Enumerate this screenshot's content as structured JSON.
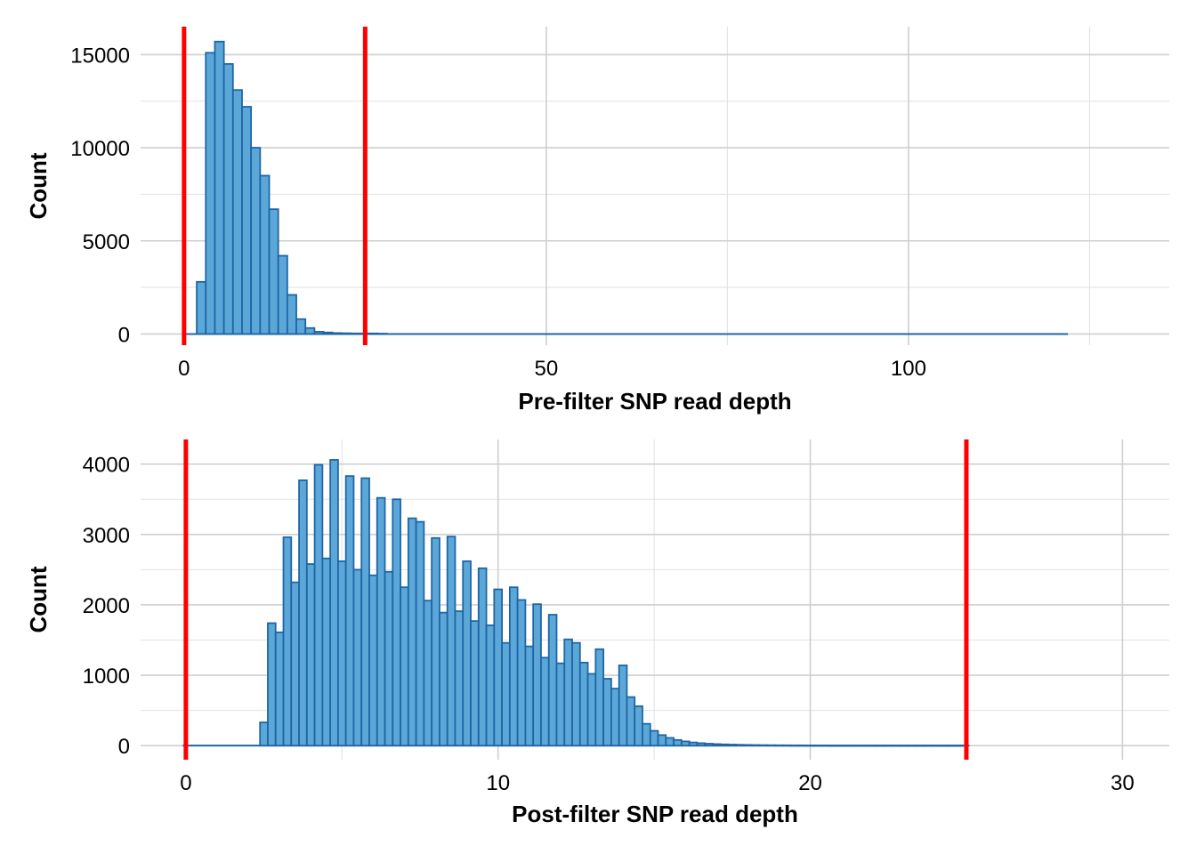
{
  "chart_data": [
    {
      "type": "bar",
      "xlabel": "Pre-filter SNP read depth",
      "ylabel": "Count",
      "xlim": [
        -6,
        136
      ],
      "ylim": [
        -600,
        16500
      ],
      "x_ticks": [
        0,
        50,
        100
      ],
      "y_ticks": [
        0,
        5000,
        10000,
        15000
      ],
      "grid": true,
      "bin_width": 1.25,
      "bins": [
        {
          "x": 2.375,
          "y": 2800
        },
        {
          "x": 3.625,
          "y": 15100
        },
        {
          "x": 4.875,
          "y": 15700
        },
        {
          "x": 6.125,
          "y": 14500
        },
        {
          "x": 7.375,
          "y": 13100
        },
        {
          "x": 8.625,
          "y": 12200
        },
        {
          "x": 9.875,
          "y": 10000
        },
        {
          "x": 11.125,
          "y": 8500
        },
        {
          "x": 12.375,
          "y": 6700
        },
        {
          "x": 13.625,
          "y": 4200
        },
        {
          "x": 14.875,
          "y": 2100
        },
        {
          "x": 16.125,
          "y": 800
        },
        {
          "x": 17.375,
          "y": 320
        },
        {
          "x": 18.625,
          "y": 120
        },
        {
          "x": 19.875,
          "y": 80
        },
        {
          "x": 21.125,
          "y": 50
        },
        {
          "x": 22.375,
          "y": 40
        },
        {
          "x": 23.625,
          "y": 30
        },
        {
          "x": 24.875,
          "y": 30
        },
        {
          "x": 26.125,
          "y": 30
        },
        {
          "x": 27.375,
          "y": 20
        }
      ],
      "baseline_range": [
        0,
        122
      ],
      "threshold_lines": [
        0,
        25
      ],
      "threshold_color": "#ff0000",
      "bar_fill": "#5ba8d8",
      "bar_stroke": "#1f65a6"
    },
    {
      "type": "bar",
      "xlabel": "Post-filter SNP read depth",
      "ylabel": "Count",
      "xlim": [
        -1.45,
        31.5
      ],
      "ylim": [
        -200,
        4350
      ],
      "x_ticks": [
        0,
        10,
        20,
        30
      ],
      "y_ticks": [
        0,
        1000,
        2000,
        3000,
        4000
      ],
      "grid": true,
      "bin_width": 0.25,
      "bins": [
        {
          "x": 2.5,
          "y": 330
        },
        {
          "x": 2.75,
          "y": 1740
        },
        {
          "x": 3.0,
          "y": 1610
        },
        {
          "x": 3.25,
          "y": 2960
        },
        {
          "x": 3.5,
          "y": 2320
        },
        {
          "x": 3.75,
          "y": 3770
        },
        {
          "x": 4.0,
          "y": 2580
        },
        {
          "x": 4.25,
          "y": 3990
        },
        {
          "x": 4.5,
          "y": 2660
        },
        {
          "x": 4.75,
          "y": 4060
        },
        {
          "x": 5.0,
          "y": 2620
        },
        {
          "x": 5.25,
          "y": 3830
        },
        {
          "x": 5.5,
          "y": 2500
        },
        {
          "x": 5.75,
          "y": 3800
        },
        {
          "x": 6.0,
          "y": 2420
        },
        {
          "x": 6.25,
          "y": 3520
        },
        {
          "x": 6.5,
          "y": 2470
        },
        {
          "x": 6.75,
          "y": 3500
        },
        {
          "x": 7.0,
          "y": 2250
        },
        {
          "x": 7.25,
          "y": 3230
        },
        {
          "x": 7.5,
          "y": 3180
        },
        {
          "x": 7.75,
          "y": 2060
        },
        {
          "x": 8.0,
          "y": 2950
        },
        {
          "x": 8.25,
          "y": 1890
        },
        {
          "x": 8.5,
          "y": 2970
        },
        {
          "x": 8.75,
          "y": 1910
        },
        {
          "x": 9.0,
          "y": 2620
        },
        {
          "x": 9.25,
          "y": 1770
        },
        {
          "x": 9.5,
          "y": 2520
        },
        {
          "x": 9.75,
          "y": 1710
        },
        {
          "x": 10.0,
          "y": 2220
        },
        {
          "x": 10.25,
          "y": 1460
        },
        {
          "x": 10.5,
          "y": 2250
        },
        {
          "x": 10.75,
          "y": 2070
        },
        {
          "x": 11.0,
          "y": 1410
        },
        {
          "x": 11.25,
          "y": 2010
        },
        {
          "x": 11.5,
          "y": 1250
        },
        {
          "x": 11.75,
          "y": 1860
        },
        {
          "x": 12.0,
          "y": 1170
        },
        {
          "x": 12.25,
          "y": 1510
        },
        {
          "x": 12.5,
          "y": 1460
        },
        {
          "x": 12.75,
          "y": 1180
        },
        {
          "x": 13.0,
          "y": 1020
        },
        {
          "x": 13.25,
          "y": 1370
        },
        {
          "x": 13.5,
          "y": 950
        },
        {
          "x": 13.75,
          "y": 810
        },
        {
          "x": 14.0,
          "y": 1140
        },
        {
          "x": 14.25,
          "y": 690
        },
        {
          "x": 14.5,
          "y": 560
        },
        {
          "x": 14.75,
          "y": 310
        },
        {
          "x": 15.0,
          "y": 210
        },
        {
          "x": 15.25,
          "y": 150
        },
        {
          "x": 15.5,
          "y": 110
        },
        {
          "x": 15.75,
          "y": 80
        },
        {
          "x": 16.0,
          "y": 60
        },
        {
          "x": 16.25,
          "y": 45
        },
        {
          "x": 16.5,
          "y": 35
        },
        {
          "x": 16.75,
          "y": 28
        },
        {
          "x": 17.0,
          "y": 22
        },
        {
          "x": 17.25,
          "y": 18
        },
        {
          "x": 17.5,
          "y": 15
        },
        {
          "x": 17.75,
          "y": 12
        },
        {
          "x": 18.0,
          "y": 10
        },
        {
          "x": 18.25,
          "y": 8
        },
        {
          "x": 18.5,
          "y": 7
        },
        {
          "x": 18.75,
          "y": 6
        },
        {
          "x": 19.0,
          "y": 5
        },
        {
          "x": 19.25,
          "y": 5
        },
        {
          "x": 19.5,
          "y": 4
        },
        {
          "x": 19.75,
          "y": 4
        },
        {
          "x": 20.0,
          "y": 3
        },
        {
          "x": 20.25,
          "y": 3
        },
        {
          "x": 20.5,
          "y": 3
        },
        {
          "x": 20.75,
          "y": 2
        },
        {
          "x": 21.0,
          "y": 2
        },
        {
          "x": 21.25,
          "y": 2
        },
        {
          "x": 21.5,
          "y": 2
        },
        {
          "x": 21.75,
          "y": 2
        },
        {
          "x": 22.0,
          "y": 2
        },
        {
          "x": 22.25,
          "y": 2
        },
        {
          "x": 22.5,
          "y": 2
        },
        {
          "x": 22.75,
          "y": 2
        },
        {
          "x": 23.0,
          "y": 2
        },
        {
          "x": 23.25,
          "y": 2
        },
        {
          "x": 23.5,
          "y": 2
        },
        {
          "x": 23.75,
          "y": 2
        },
        {
          "x": 24.0,
          "y": 2
        },
        {
          "x": 24.25,
          "y": 2
        },
        {
          "x": 24.5,
          "y": 2
        },
        {
          "x": 24.75,
          "y": 2
        }
      ],
      "baseline_range": [
        -0.1,
        25.1
      ],
      "threshold_lines": [
        0,
        25
      ],
      "threshold_color": "#ff0000",
      "bar_fill": "#5ba8d8",
      "bar_stroke": "#1f65a6"
    }
  ]
}
